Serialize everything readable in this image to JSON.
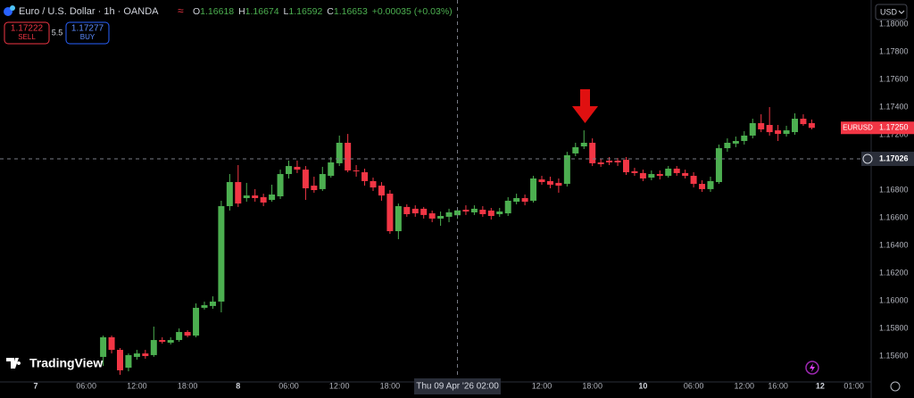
{
  "header": {
    "symbol_title": "Euro / U.S. Dollar · 1h · OANDA",
    "ohlc": [
      {
        "key": "O",
        "value": "1.16618"
      },
      {
        "key": "H",
        "value": "1.16674"
      },
      {
        "key": "L",
        "value": "1.16592"
      },
      {
        "key": "C",
        "value": "1.16653"
      }
    ],
    "change": "+0.00035 (+0.03%)"
  },
  "trade": {
    "sell_price": "1.17222",
    "sell_label": "SELL",
    "spread": "5.5",
    "buy_price": "1.17277",
    "buy_label": "BUY"
  },
  "currency_selector": "USD",
  "brand": "TradingView",
  "chart_data": {
    "type": "candlestick",
    "categories": [
      "7",
      null,
      null,
      null,
      null,
      null,
      "06:00",
      null,
      null,
      null,
      null,
      null,
      "12:00",
      null,
      null,
      null,
      null,
      null,
      "18:00",
      null,
      null,
      null,
      null,
      null,
      "8",
      null,
      null,
      null,
      null,
      null,
      "06:00",
      null,
      null,
      null,
      null,
      null,
      "12:00",
      null,
      null,
      null,
      null,
      null,
      "18:00",
      null,
      null,
      null,
      null,
      null,
      null,
      null,
      null,
      null,
      null,
      null,
      null,
      null,
      null,
      null,
      null,
      null,
      "12:00",
      null,
      null,
      null,
      null,
      null,
      "18:00",
      null,
      null,
      null,
      null,
      null,
      "10",
      null,
      null,
      null,
      null,
      null,
      "06:00",
      null,
      null,
      null,
      null,
      null,
      "12:00",
      null,
      null,
      null,
      "16:00",
      null,
      null,
      null,
      null,
      "12",
      null,
      null,
      null,
      "01:00"
    ],
    "series": [
      {
        "name": "EURUSD",
        "up_color": "#4caf50",
        "down_color": "#f23645",
        "open": [
          null,
          null,
          null,
          null,
          null,
          null,
          null,
          null,
          1.15594,
          1.15736,
          1.15645,
          1.15516,
          1.15594,
          1.15619,
          1.15607,
          1.15716,
          1.15697,
          1.15716,
          1.15774,
          1.15748,
          1.15949,
          1.15962,
          1.15994,
          1.16684,
          1.16858,
          1.16742,
          1.16761,
          1.16749,
          1.16729,
          1.16755,
          1.16916,
          1.16968,
          1.16948,
          1.16832,
          1.16807,
          1.16903,
          1.16994,
          1.17142,
          1.16942,
          1.16929,
          1.16865,
          1.16832,
          1.16774,
          1.16503,
          1.16678,
          1.16665,
          1.16665,
          1.16632,
          1.16594,
          1.16607,
          1.16618,
          1.16658,
          1.16639,
          1.16658,
          1.16652,
          1.16626,
          1.16632,
          1.16716,
          1.16742,
          1.16723,
          1.16877,
          1.16865,
          1.16852,
          1.16845,
          1.17065,
          1.17116,
          1.17142,
          1.17,
          1.17013,
          1.17013,
          1.17019,
          1.16936,
          1.16923,
          1.1689,
          1.16916,
          1.16903,
          1.16955,
          1.16923,
          1.16903,
          1.16845,
          1.16807,
          1.16858,
          1.17103,
          1.17136,
          1.17155,
          1.17194,
          1.17284,
          1.17271,
          1.17232,
          1.17206,
          1.17219,
          1.17316,
          1.17284,
          null,
          null,
          null,
          null,
          null
        ],
        "high": [
          null,
          null,
          null,
          null,
          null,
          null,
          null,
          null,
          1.15748,
          1.15748,
          1.15658,
          1.15619,
          1.15645,
          1.15645,
          1.15813,
          1.15736,
          1.15736,
          1.158,
          1.15787,
          1.15981,
          1.15994,
          1.16032,
          1.16723,
          1.16916,
          1.16981,
          1.16852,
          1.16807,
          1.16774,
          1.16839,
          1.16948,
          1.17013,
          1.17013,
          1.16974,
          1.16897,
          1.16968,
          1.17039,
          1.17194,
          1.17206,
          1.16981,
          1.16955,
          1.1689,
          1.16858,
          1.168,
          1.16703,
          1.16697,
          1.1669,
          1.16678,
          1.16652,
          1.16645,
          1.16665,
          1.16674,
          1.1669,
          1.1669,
          1.16684,
          1.16671,
          1.16671,
          1.16749,
          1.16774,
          1.16768,
          1.16903,
          1.16903,
          1.16897,
          1.16884,
          1.17077,
          1.17142,
          1.17232,
          1.17174,
          1.17026,
          1.17039,
          1.17032,
          1.17039,
          1.16961,
          1.16948,
          1.16942,
          1.16942,
          1.16974,
          1.16974,
          1.16948,
          1.16929,
          1.16871,
          1.16897,
          1.17129,
          1.17174,
          1.17187,
          1.17226,
          1.17316,
          1.17348,
          1.174,
          1.17271,
          1.17265,
          1.17355,
          1.17348,
          1.1731,
          null,
          null,
          null,
          null,
          null
        ],
        "low": [
          null,
          null,
          null,
          null,
          null,
          null,
          null,
          null,
          1.15529,
          1.15619,
          1.15465,
          1.1549,
          1.15574,
          1.15581,
          1.15594,
          1.1569,
          1.15684,
          1.15703,
          1.15736,
          1.15736,
          1.15936,
          1.15942,
          1.15916,
          1.16652,
          1.16678,
          1.16716,
          1.16716,
          1.16684,
          1.16716,
          1.16736,
          1.16884,
          1.16923,
          1.16729,
          1.16781,
          1.16794,
          1.1689,
          1.16974,
          1.16929,
          1.16897,
          1.16832,
          1.16794,
          1.16723,
          1.16484,
          1.16445,
          1.16607,
          1.16607,
          1.16594,
          1.16568,
          1.16542,
          1.16568,
          1.16592,
          1.1662,
          1.1662,
          1.16607,
          1.16587,
          1.16607,
          1.16613,
          1.16697,
          1.1669,
          1.1671,
          1.16839,
          1.16813,
          1.16781,
          1.16826,
          1.17045,
          1.17097,
          1.16974,
          1.16968,
          1.16981,
          1.16974,
          1.1691,
          1.16903,
          1.16865,
          1.16871,
          1.16877,
          1.1689,
          1.16903,
          1.16884,
          1.16819,
          1.16787,
          1.16787,
          1.16845,
          1.17077,
          1.1711,
          1.17129,
          1.17174,
          1.17219,
          1.17194,
          1.17155,
          1.17187,
          1.172,
          1.17265,
          1.17239,
          null,
          null,
          null,
          null,
          null
        ],
        "close": [
          null,
          null,
          null,
          null,
          null,
          null,
          null,
          null,
          1.15736,
          1.15645,
          1.15497,
          1.15607,
          1.15619,
          1.156,
          1.15716,
          1.15703,
          1.15716,
          1.15774,
          1.15748,
          1.15949,
          1.15968,
          1.15994,
          1.16684,
          1.16858,
          1.16703,
          1.16761,
          1.16742,
          1.1671,
          1.16768,
          1.16916,
          1.16974,
          1.16948,
          1.16813,
          1.168,
          1.16916,
          1.17,
          1.17142,
          1.16942,
          1.16936,
          1.16865,
          1.16819,
          1.16761,
          1.16503,
          1.16684,
          1.16626,
          1.16632,
          1.1662,
          1.16594,
          1.16613,
          1.16639,
          1.16653,
          1.16645,
          1.16665,
          1.16626,
          1.16613,
          1.16645,
          1.16723,
          1.16742,
          1.16716,
          1.16884,
          1.16858,
          1.16839,
          1.16832,
          1.17052,
          1.1711,
          1.17142,
          1.16994,
          1.16987,
          1.17,
          1.17,
          1.16929,
          1.16923,
          1.16884,
          1.16916,
          1.16903,
          1.16955,
          1.16923,
          1.16903,
          1.16845,
          1.16807,
          1.16865,
          1.17103,
          1.17142,
          1.17155,
          1.17194,
          1.17284,
          1.17239,
          1.17219,
          1.17206,
          1.17232,
          1.17316,
          1.17277,
          1.1725,
          null,
          null,
          null,
          null,
          null
        ]
      }
    ],
    "ylim": [
      1.15413,
      1.18142
    ],
    "yticks": [
      {
        "value": 1.18,
        "label": "1.18000"
      },
      {
        "value": 1.178,
        "label": "1.17800"
      },
      {
        "value": 1.176,
        "label": "1.17600"
      },
      {
        "value": 1.174,
        "label": "1.17400"
      },
      {
        "value": 1.172,
        "label": "1.17200"
      },
      {
        "value": 1.17,
        "label": "1.17000"
      },
      {
        "value": 1.168,
        "label": "1.16800"
      },
      {
        "value": 1.166,
        "label": "1.16600"
      },
      {
        "value": 1.164,
        "label": "1.16400"
      },
      {
        "value": 1.162,
        "label": "1.16200"
      },
      {
        "value": 1.16,
        "label": "1.16000"
      },
      {
        "value": 1.158,
        "label": "1.15800"
      },
      {
        "value": 1.156,
        "label": "1.15600"
      }
    ],
    "grid": false,
    "last_price": {
      "symbol": "EURUSD",
      "value": 1.1725,
      "label": "1.17250"
    },
    "crosshair": {
      "x_label": "Thu 09 Apr '26 02:00",
      "price": {
        "value": 1.17026,
        "label": "1.17026"
      }
    }
  }
}
